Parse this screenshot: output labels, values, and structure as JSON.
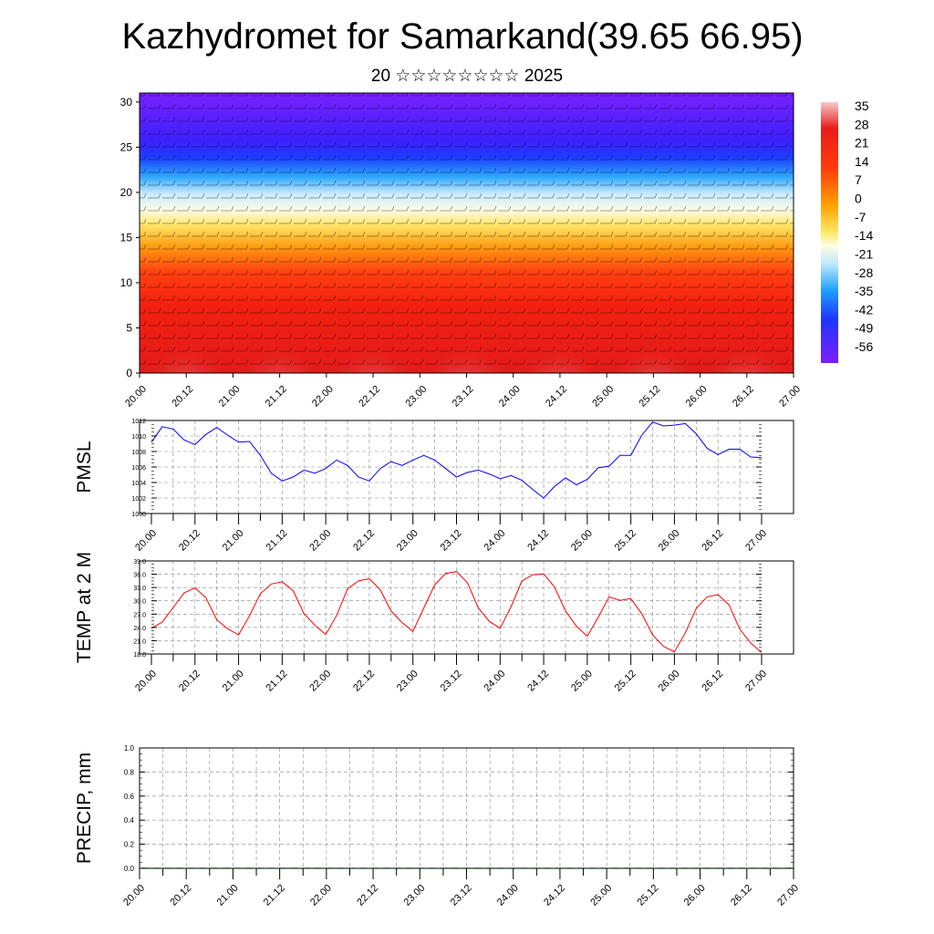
{
  "header": {
    "title": "Kazhydromet for Samarkand(39.65 66.95)",
    "subtitle": "20 ☆☆☆☆☆☆☆☆ 2025"
  },
  "colors": {
    "pmsl_line": "#0000ff",
    "temp_line": "#ff0000",
    "grid": "#888888"
  },
  "time_ticks": [
    "20.00",
    "20.12",
    "21.00",
    "21.12",
    "22.00",
    "22.12",
    "23.00",
    "23.12",
    "24.00",
    "24.12",
    "25.00",
    "25.12",
    "26.00",
    "26.12",
    "27.00"
  ],
  "chart_data": [
    {
      "type": "heatmap",
      "title": "",
      "xlabel": "",
      "ylabel": "",
      "x_ticks": [
        "20.00",
        "20.12",
        "21.00",
        "21.12",
        "22.00",
        "22.12",
        "23.00",
        "23.12",
        "24.00",
        "24.12",
        "25.00",
        "25.12",
        "26.00",
        "26.12",
        "27.00"
      ],
      "yticks": [
        0,
        5,
        10,
        15,
        20,
        25,
        30
      ],
      "ylim": [
        0,
        31
      ],
      "colorbar_labels": [
        "35",
        "28",
        "21",
        "14",
        "7",
        "0",
        "-7",
        "-14",
        "-21",
        "-28",
        "-35",
        "-42",
        "-49",
        "-56"
      ],
      "overlay": "wind barbs",
      "colormap": "red at surface, yellow near level 17, cyan near 21, blue-violet above 25"
    },
    {
      "type": "line",
      "ylabel": "PMSL",
      "ylim": [
        1000,
        1012
      ],
      "yticks": [
        "1000",
        "1002",
        "1004",
        "1006",
        "1008",
        "1010",
        "1012"
      ],
      "x_ticks": [
        "20.00",
        "20.12",
        "21.00",
        "21.12",
        "22.00",
        "22.12",
        "23.00",
        "23.12",
        "24.00",
        "24.12",
        "25.00",
        "25.12",
        "26.00",
        "26.12",
        "27.00"
      ],
      "series": [
        {
          "values": [
            1009.2,
            1011.2,
            1010.9,
            1009.5,
            1008.9,
            1010.2,
            1011.1,
            1010.1,
            1009.2,
            1009.3,
            1007.5,
            1005.2,
            1004.2,
            1004.7,
            1005.6,
            1005.2,
            1005.8,
            1006.9,
            1006.2,
            1004.7,
            1004.2,
            1005.8,
            1006.7,
            1006.2,
            1006.9,
            1007.5,
            1006.9,
            1005.8,
            1004.7,
            1005.3,
            1005.6,
            1005.1,
            1004.5,
            1004.9,
            1004.3,
            1003.1,
            1002.0,
            1003.5,
            1004.6,
            1003.7,
            1004.4,
            1005.9,
            1006.1,
            1007.5,
            1007.5,
            1010.1,
            1011.8,
            1011.3,
            1011.4,
            1011.6,
            1010.3,
            1008.4,
            1007.6,
            1008.3,
            1008.3,
            1007.3,
            1007.2
          ]
        }
      ]
    },
    {
      "type": "line",
      "ylabel": "TEMP at 2 M",
      "ylim": [
        18,
        39
      ],
      "yticks": [
        "18.0",
        "21.0",
        "24.0",
        "27.0",
        "30.0",
        "33.0",
        "36.0",
        "39.0"
      ],
      "x_ticks": [
        "20.00",
        "20.12",
        "21.00",
        "21.12",
        "22.00",
        "22.12",
        "23.00",
        "23.12",
        "24.00",
        "24.12",
        "25.00",
        "25.12",
        "26.00",
        "26.12",
        "27.00"
      ],
      "series": [
        {
          "values": [
            23.8,
            25.2,
            28.5,
            31.8,
            32.9,
            30.7,
            25.7,
            23.7,
            22.3,
            26.6,
            31.6,
            33.8,
            34.3,
            32.3,
            27.1,
            24.5,
            22.4,
            26.7,
            32.7,
            34.5,
            35.0,
            32.5,
            27.7,
            25.1,
            23.1,
            28.4,
            33.6,
            36.2,
            36.6,
            34.1,
            28.4,
            25.4,
            23.8,
            28.6,
            34.5,
            35.9,
            36.1,
            33.1,
            27.7,
            24.3,
            22.0,
            26.3,
            30.9,
            30.1,
            30.5,
            27.1,
            22.3,
            19.7,
            18.5,
            22.8,
            28.3,
            30.9,
            31.4,
            29.1,
            23.6,
            20.5,
            18.3
          ]
        }
      ]
    },
    {
      "type": "bar",
      "ylabel": "PRECIP, mm",
      "ylim": [
        0,
        1
      ],
      "yticks": [
        "0.0",
        "0.2",
        "0.4",
        "0.6",
        "0.8",
        "1.0"
      ],
      "x_ticks": [
        "20.00",
        "20.12",
        "21.00",
        "21.12",
        "22.00",
        "22.12",
        "23.00",
        "23.12",
        "24.00",
        "24.12",
        "25.00",
        "25.12",
        "26.00",
        "26.12",
        "27.00"
      ],
      "values": [
        0,
        0,
        0,
        0,
        0,
        0,
        0,
        0,
        0,
        0,
        0,
        0,
        0,
        0,
        0,
        0,
        0,
        0,
        0,
        0,
        0,
        0,
        0,
        0,
        0,
        0,
        0,
        0,
        0,
        0,
        0,
        0,
        0,
        0,
        0,
        0,
        0,
        0,
        0,
        0,
        0,
        0,
        0,
        0,
        0,
        0,
        0,
        0,
        0,
        0,
        0,
        0,
        0,
        0,
        0,
        0,
        0
      ]
    }
  ]
}
